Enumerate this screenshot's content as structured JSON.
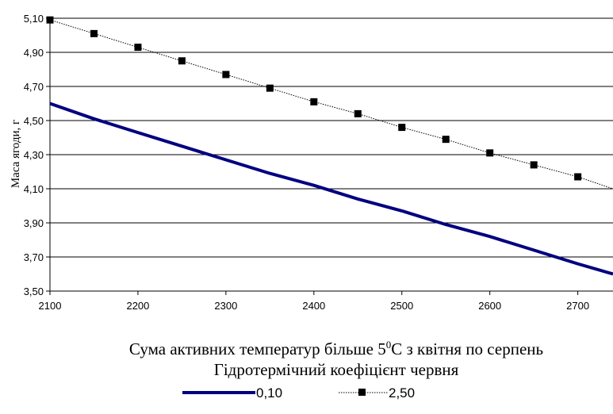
{
  "chart_data": {
    "type": "line",
    "ylabel": "Маса ягоди, г",
    "xlabel": {
      "main": "Сума активних температур більше 5",
      "superscript": "0",
      "rest": "С з квітня по серпень"
    },
    "legend_title": "Гідротермічний коефіцієнт червня",
    "legend_placement": "bottom",
    "xlim": [
      2100,
      2740
    ],
    "ylim": [
      3.5,
      5.1
    ],
    "x_ticks": [
      "2100",
      "2200",
      "2300",
      "2400",
      "2500",
      "2600",
      "2700"
    ],
    "y_ticks": [
      "5,10",
      "4,90",
      "4,70",
      "4,50",
      "4,30",
      "4,10",
      "3,90",
      "3,70",
      "3,50"
    ],
    "grid": "horizontal",
    "series": [
      {
        "name": "0,10",
        "color": "#000080",
        "style": "solid-thick",
        "marker": "none",
        "x": [
          2100,
          2150,
          2200,
          2250,
          2300,
          2350,
          2400,
          2450,
          2500,
          2550,
          2600,
          2650,
          2700,
          2740
        ],
        "y": [
          4.6,
          4.51,
          4.43,
          4.35,
          4.27,
          4.19,
          4.12,
          4.04,
          3.97,
          3.89,
          3.82,
          3.74,
          3.66,
          3.6
        ]
      },
      {
        "name": "2,50",
        "color": "#000000",
        "style": "dotted",
        "marker": "square",
        "x": [
          2100,
          2150,
          2200,
          2250,
          2300,
          2350,
          2400,
          2450,
          2500,
          2550,
          2600,
          2650,
          2700
        ],
        "y": [
          5.09,
          5.01,
          4.93,
          4.85,
          4.77,
          4.69,
          4.61,
          4.54,
          4.46,
          4.39,
          4.31,
          4.24,
          4.17
        ],
        "line_end": {
          "x": 2740,
          "y": 4.1
        }
      }
    ]
  }
}
